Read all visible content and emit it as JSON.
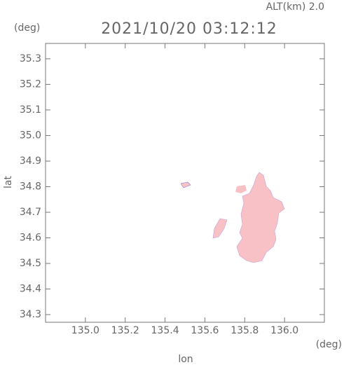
{
  "chart_data": {
    "type": "map",
    "title": "2021/10/20 03:12:12",
    "subtitle": "ALT(km) 2.0",
    "y_unit": "(deg)",
    "x_unit": "(deg)",
    "xlabel": "lon",
    "ylabel": "lat",
    "xlim": [
      134.8,
      136.2
    ],
    "ylim": [
      34.27,
      35.36
    ],
    "xticks": [
      {
        "value": 135,
        "label": "135.0"
      },
      135.2,
      135.4,
      135.6,
      135.8,
      {
        "value": 136,
        "label": "136.0"
      }
    ],
    "yticks": [
      34.3,
      34.4,
      34.5,
      34.6,
      34.7,
      34.8,
      34.9,
      {
        "value": 35,
        "label": "35.0"
      },
      35.1,
      35.2,
      35.3
    ],
    "color": "#f7c1c5"
  }
}
